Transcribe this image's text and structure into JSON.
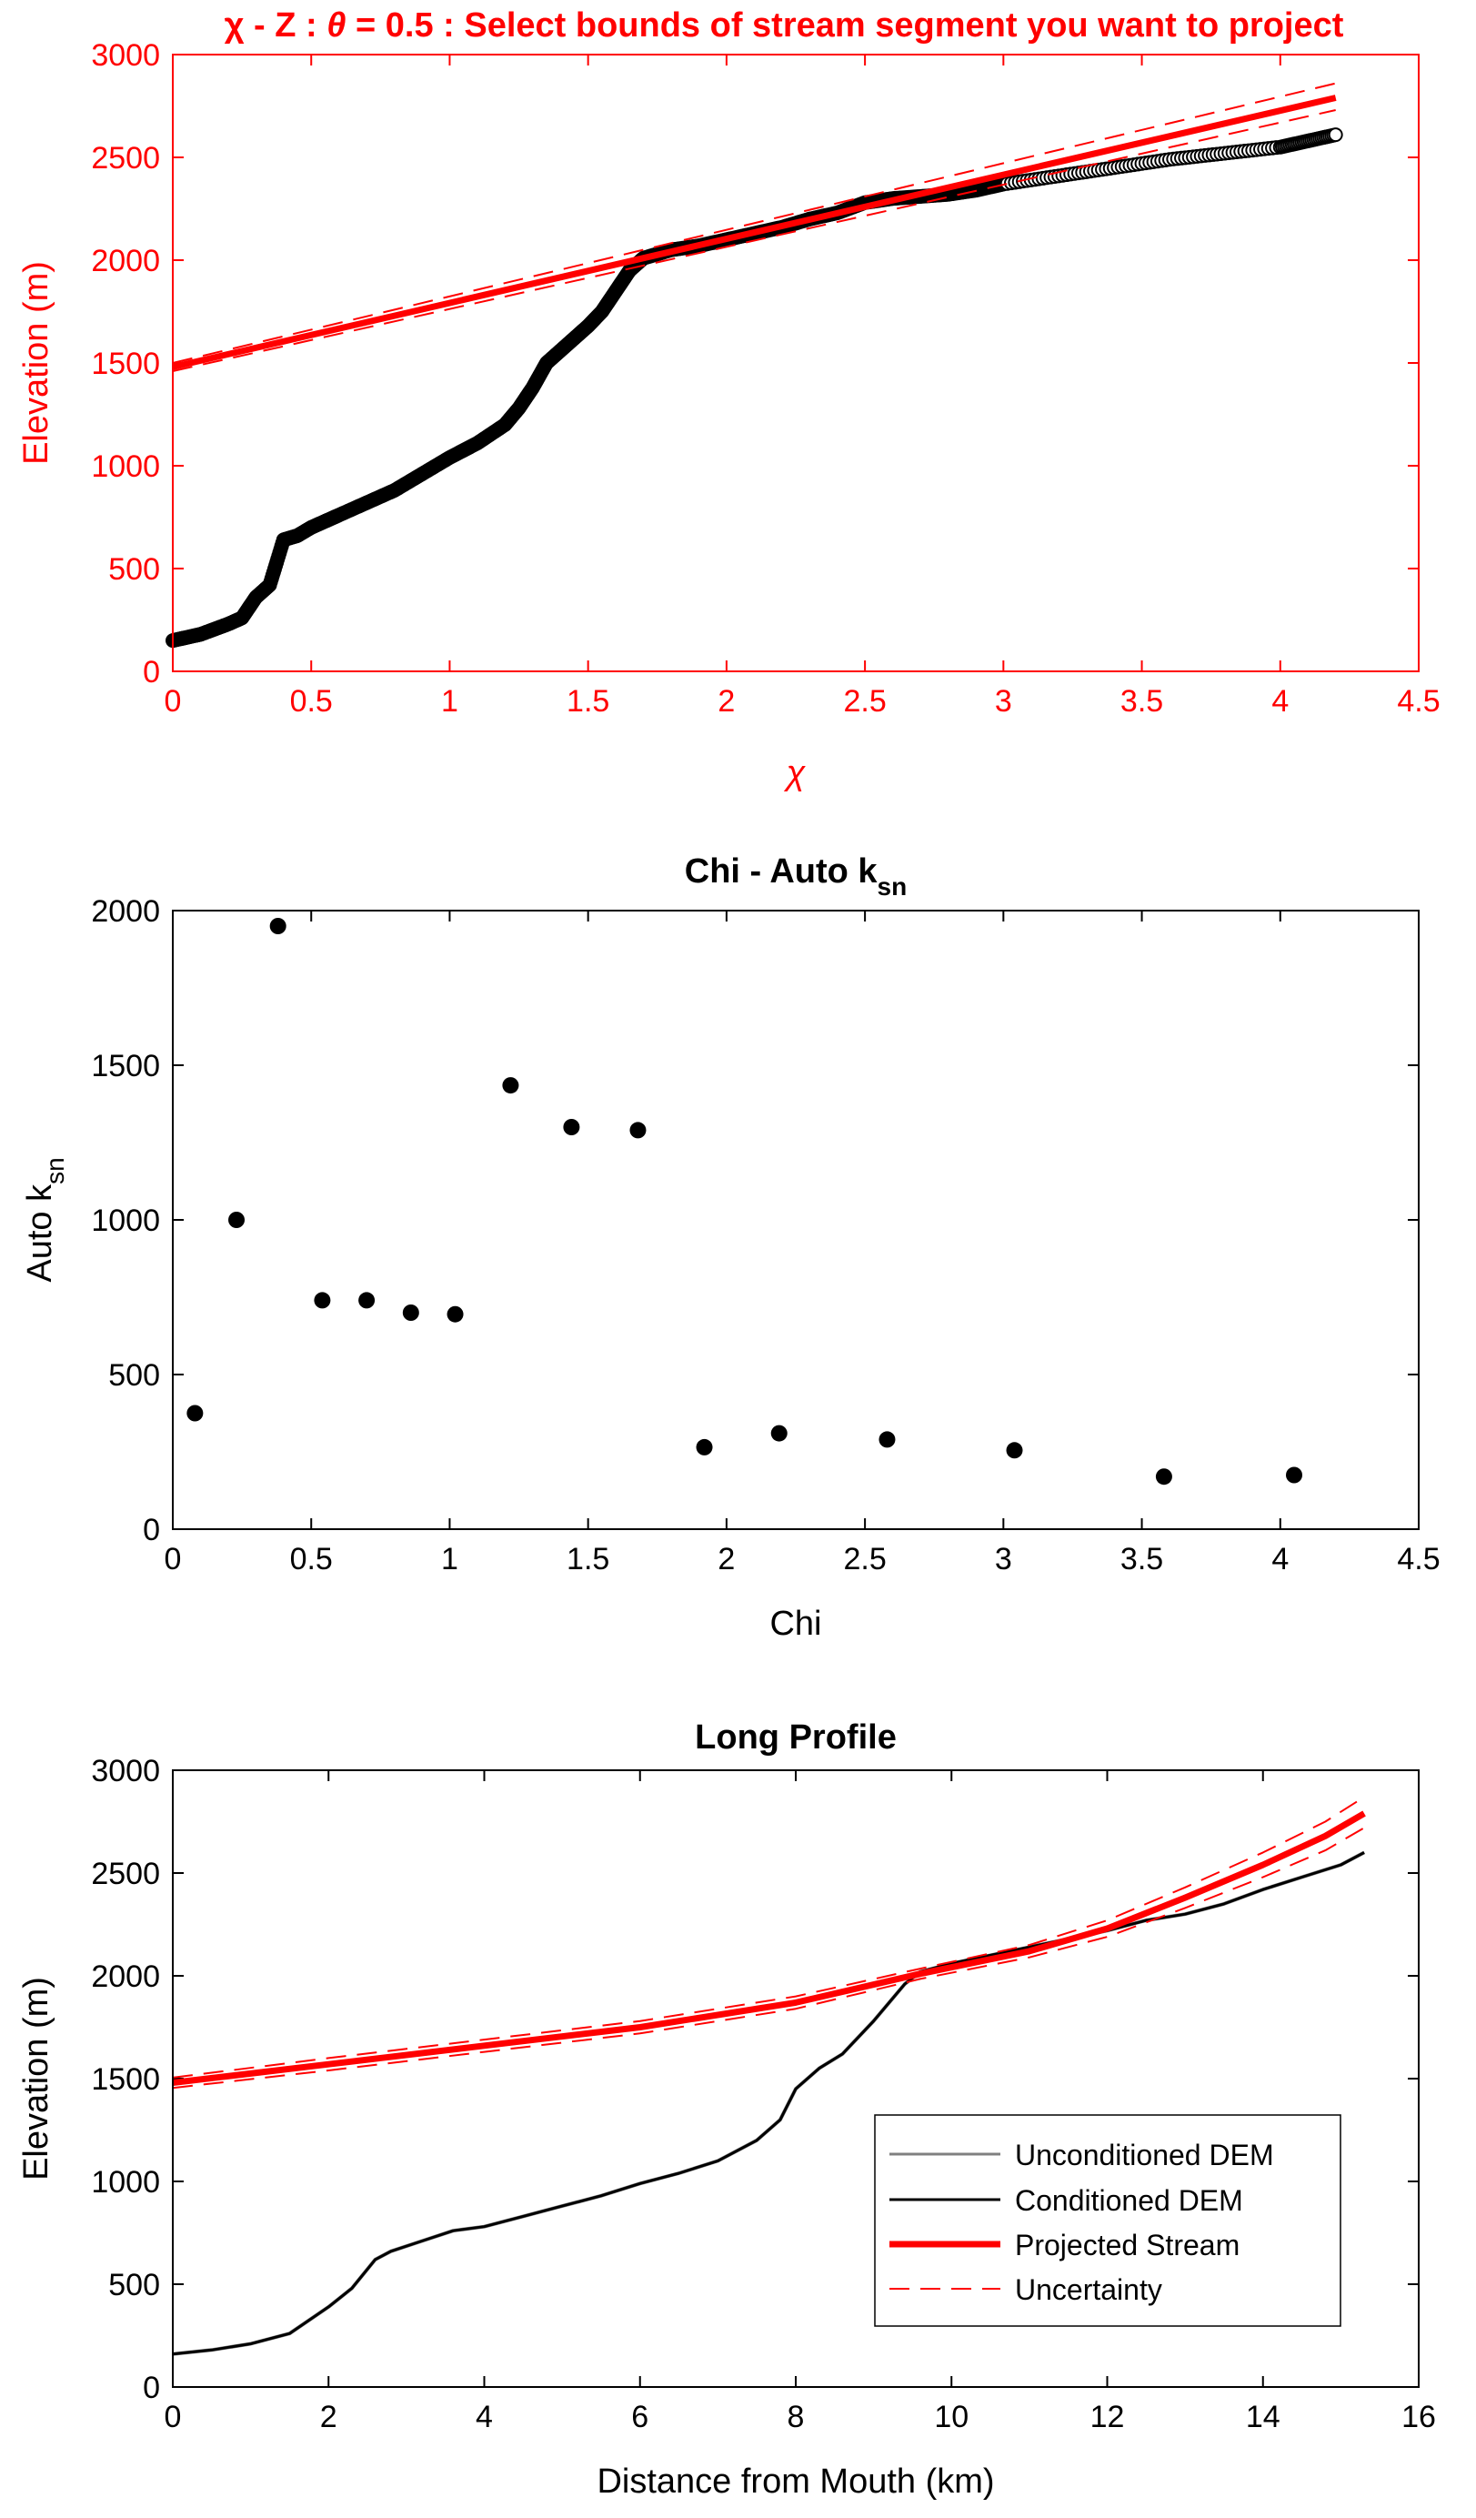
{
  "chart_data": [
    {
      "type": "scatter",
      "title": "χ - Z : θ = 0.5 : Select bounds of stream segment you want to project",
      "title_parts": {
        "chi_symbol": "χ",
        "middle": " - Z : ",
        "theta_symbol": "θ",
        "rest": " = 0.5 : Select bounds of stream segment you want to project"
      },
      "xlabel": "χ",
      "ylabel": "Elevation (m)",
      "xlim": [
        0,
        4.5
      ],
      "ylim": [
        0,
        3000
      ],
      "xticks": [
        0,
        0.5,
        1,
        1.5,
        2,
        2.5,
        3,
        3.5,
        4,
        4.5
      ],
      "xtick_labels": [
        "0",
        "0.5",
        "1",
        "1.5",
        "2",
        "2.5",
        "3",
        "3.5",
        "4",
        "4.5"
      ],
      "yticks": [
        0,
        500,
        1000,
        1500,
        2000,
        2500,
        3000
      ],
      "ytick_labels": [
        "0",
        "500",
        "1000",
        "1500",
        "2000",
        "2500",
        "3000"
      ],
      "accent_color": "#ff0000",
      "series": [
        {
          "kind": "markers",
          "color": "#000000",
          "x": [
            0,
            0.05,
            0.1,
            0.15,
            0.2,
            0.25,
            0.3,
            0.35,
            0.4,
            0.45,
            0.5,
            0.55,
            0.6,
            0.7,
            0.8,
            0.9,
            1.0,
            1.1,
            1.2,
            1.25,
            1.3,
            1.35,
            1.4,
            1.45,
            1.5,
            1.55,
            1.6,
            1.65,
            1.7,
            1.8,
            1.9,
            2.0,
            2.1,
            2.2,
            2.3,
            2.4,
            2.5,
            2.6,
            2.7,
            2.8,
            2.9,
            3.0,
            3.2,
            3.4,
            3.6,
            3.8,
            4.0,
            4.1,
            4.2
          ],
          "y": [
            150,
            165,
            180,
            205,
            230,
            260,
            360,
            420,
            640,
            660,
            700,
            730,
            760,
            820,
            880,
            960,
            1040,
            1110,
            1200,
            1280,
            1380,
            1500,
            1560,
            1620,
            1680,
            1750,
            1850,
            1950,
            2010,
            2050,
            2070,
            2100,
            2130,
            2160,
            2200,
            2230,
            2280,
            2300,
            2310,
            2320,
            2340,
            2370,
            2410,
            2450,
            2490,
            2520,
            2550,
            2580,
            2610
          ]
        },
        {
          "kind": "line",
          "name": "Projected Stream",
          "color": "#ff0000",
          "x": [
            0,
            4.2
          ],
          "y": [
            1480,
            2790
          ]
        },
        {
          "kind": "dashed",
          "name": "Uncertainty",
          "color": "#ff0000",
          "x": [
            0,
            4.2
          ],
          "y": [
            1460,
            2730
          ]
        },
        {
          "kind": "dashed",
          "name": "Uncertainty",
          "color": "#ff0000",
          "x": [
            0,
            4.2
          ],
          "y": [
            1500,
            2860
          ]
        }
      ]
    },
    {
      "type": "scatter",
      "title": "Chi - Auto k",
      "title_sub": "sn",
      "xlabel": "Chi",
      "ylabel": "Auto k",
      "ylabel_sub": "sn",
      "xlim": [
        0,
        4.5
      ],
      "ylim": [
        0,
        2000
      ],
      "xticks": [
        0,
        0.5,
        1,
        1.5,
        2,
        2.5,
        3,
        3.5,
        4,
        4.5
      ],
      "xtick_labels": [
        "0",
        "0.5",
        "1",
        "1.5",
        "2",
        "2.5",
        "3",
        "3.5",
        "4",
        "4.5"
      ],
      "yticks": [
        0,
        500,
        1000,
        1500,
        2000
      ],
      "ytick_labels": [
        "0",
        "500",
        "1000",
        "1500",
        "2000"
      ],
      "series": [
        {
          "kind": "points",
          "color": "#000000",
          "x": [
            0.08,
            0.23,
            0.38,
            0.54,
            0.7,
            0.86,
            1.02,
            1.22,
            1.44,
            1.68,
            1.92,
            2.19,
            2.58,
            3.04,
            3.58,
            4.05
          ],
          "y": [
            375,
            1000,
            1950,
            740,
            740,
            700,
            695,
            1435,
            1300,
            1290,
            265,
            310,
            290,
            255,
            170,
            175
          ]
        }
      ]
    },
    {
      "type": "line",
      "title": "Long Profile",
      "xlabel": "Distance from Mouth (km)",
      "ylabel": "Elevation (m)",
      "xlim": [
        0,
        16
      ],
      "ylim": [
        0,
        3000
      ],
      "xticks": [
        0,
        2,
        4,
        6,
        8,
        10,
        12,
        14,
        16
      ],
      "xtick_labels": [
        "0",
        "2",
        "4",
        "6",
        "8",
        "10",
        "12",
        "14",
        "16"
      ],
      "yticks": [
        0,
        500,
        1000,
        1500,
        2000,
        2500,
        3000
      ],
      "ytick_labels": [
        "0",
        "500",
        "1000",
        "1500",
        "2000",
        "2500",
        "3000"
      ],
      "legend_position": "lower-right",
      "series": [
        {
          "name": "Unconditioned DEM",
          "kind": "line",
          "color": "#808080",
          "x": [
            0,
            0.5,
            1.0,
            1.5,
            2.0,
            2.3,
            2.6,
            2.8,
            3.2,
            3.6,
            4.0,
            4.5,
            5.0,
            5.5,
            6.0,
            6.5,
            7.0,
            7.5,
            7.8,
            8.0,
            8.3,
            8.6,
            8.8,
            9.0,
            9.2,
            9.4,
            9.6,
            9.8,
            10.0,
            10.5,
            11.0,
            11.5,
            12.0,
            12.5,
            13.0,
            13.5,
            14.0,
            14.5,
            15.0,
            15.3
          ],
          "y": [
            160,
            180,
            210,
            260,
            390,
            480,
            620,
            660,
            710,
            760,
            780,
            830,
            880,
            930,
            990,
            1040,
            1100,
            1200,
            1300,
            1450,
            1550,
            1620,
            1700,
            1780,
            1870,
            1960,
            2020,
            2040,
            2060,
            2100,
            2140,
            2180,
            2220,
            2270,
            2300,
            2350,
            2420,
            2480,
            2540,
            2600
          ]
        },
        {
          "name": "Conditioned DEM",
          "kind": "line",
          "color": "#000000",
          "x": [
            0,
            0.5,
            1.0,
            1.5,
            2.0,
            2.3,
            2.6,
            2.8,
            3.2,
            3.6,
            4.0,
            4.5,
            5.0,
            5.5,
            6.0,
            6.5,
            7.0,
            7.5,
            7.8,
            8.0,
            8.3,
            8.6,
            8.8,
            9.0,
            9.2,
            9.4,
            9.6,
            9.8,
            10.0,
            10.5,
            11.0,
            11.5,
            12.0,
            12.5,
            13.0,
            13.5,
            14.0,
            14.5,
            15.0,
            15.3
          ],
          "y": [
            160,
            180,
            210,
            260,
            390,
            480,
            620,
            660,
            710,
            760,
            780,
            830,
            880,
            930,
            990,
            1040,
            1100,
            1200,
            1300,
            1450,
            1550,
            1620,
            1700,
            1780,
            1870,
            1960,
            2020,
            2040,
            2060,
            2100,
            2140,
            2180,
            2220,
            2270,
            2300,
            2350,
            2420,
            2480,
            2540,
            2600
          ]
        },
        {
          "name": "Projected Stream",
          "kind": "line",
          "color": "#ff0000",
          "x": [
            0,
            2,
            4,
            6,
            8,
            9.6,
            11,
            12,
            13,
            14,
            14.8,
            15.3
          ],
          "y": [
            1480,
            1570,
            1660,
            1750,
            1870,
            2010,
            2120,
            2230,
            2380,
            2540,
            2680,
            2790
          ]
        },
        {
          "name": "Uncertainty",
          "kind": "dashed",
          "color": "#ff0000",
          "x": [
            0,
            2,
            4,
            6,
            8,
            9.6,
            11,
            12,
            13,
            14,
            14.8,
            15.3
          ],
          "y": [
            1455,
            1540,
            1630,
            1720,
            1840,
            1985,
            2090,
            2190,
            2330,
            2480,
            2610,
            2720
          ]
        },
        {
          "name": "Uncertainty",
          "kind": "dashed",
          "color": "#ff0000",
          "x": [
            0,
            2,
            4,
            6,
            8,
            9.6,
            11,
            12,
            13,
            14,
            14.8,
            15.3
          ],
          "y": [
            1505,
            1600,
            1690,
            1780,
            1900,
            2035,
            2150,
            2270,
            2430,
            2600,
            2750,
            2870
          ]
        }
      ],
      "legend": [
        {
          "label": "Unconditioned DEM",
          "color": "#808080",
          "style": "thin"
        },
        {
          "label": "Conditioned DEM",
          "color": "#000000",
          "style": "thin"
        },
        {
          "label": "Projected Stream",
          "color": "#ff0000",
          "style": "thick"
        },
        {
          "label": "Uncertainty",
          "color": "#ff0000",
          "style": "dashed"
        }
      ]
    }
  ]
}
